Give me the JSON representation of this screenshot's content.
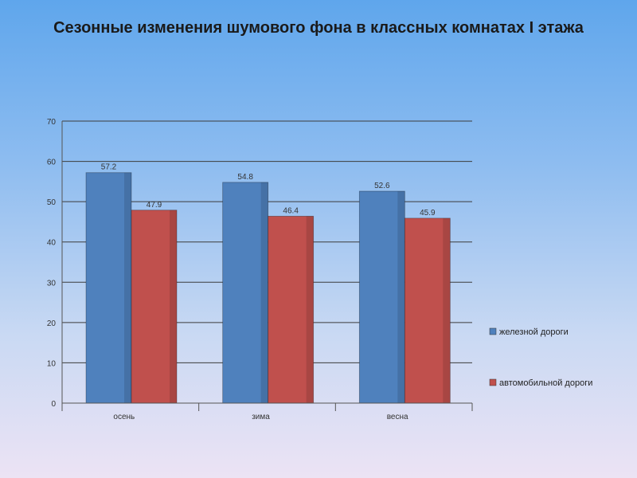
{
  "chart_data": {
    "type": "bar",
    "title": "Сезонные изменения шумового фона в классных комнатах I этажа",
    "categories": [
      "осень",
      "зима",
      "весна"
    ],
    "series": [
      {
        "name": "железной дороги",
        "values": [
          57.2,
          54.8,
          52.6
        ],
        "color": "#4f81bd"
      },
      {
        "name": "автомобильной дороги",
        "values": [
          47.9,
          46.4,
          45.9
        ],
        "color": "#c0504d"
      }
    ],
    "yticks": [
      0,
      10,
      20,
      30,
      40,
      50,
      60,
      70
    ],
    "ylim": [
      0,
      70
    ],
    "grid": true,
    "legend_position": "right"
  }
}
